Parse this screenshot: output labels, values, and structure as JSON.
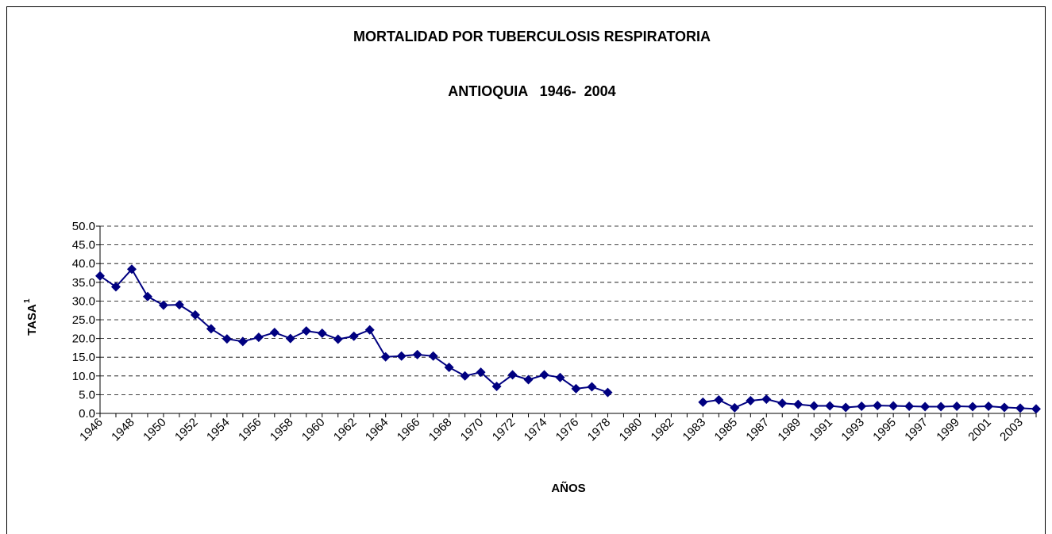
{
  "chart_data": {
    "type": "line",
    "title": "MORTALIDAD POR TUBERCULOSIS RESPIRATORIA",
    "subtitle": "ANTIOQUIA   1946-  2004",
    "y_label": "TASA",
    "y_label_superscript": "1",
    "x_label": "AÑOS",
    "categories": [
      "1946",
      null,
      "1948",
      null,
      "1950",
      null,
      "1952",
      null,
      "1954",
      null,
      "1956",
      null,
      "1958",
      null,
      "1960",
      null,
      "1962",
      null,
      "1964",
      null,
      "1966",
      null,
      "1968",
      null,
      "1970",
      null,
      "1972",
      null,
      "1974",
      null,
      "1976",
      null,
      "1978",
      null,
      "1980",
      null,
      "1982",
      null,
      "1983",
      null,
      "1985",
      null,
      "1987",
      null,
      "1989",
      null,
      "1991",
      null,
      "1993",
      null,
      "1995",
      null,
      "1997",
      null,
      "1999",
      null,
      "2001",
      null,
      "2003",
      null
    ],
    "series": [
      {
        "color": "#000080",
        "values": [
          36.7,
          33.8,
          38.5,
          31.2,
          28.9,
          29.0,
          26.3,
          22.6,
          19.9,
          19.2,
          20.3,
          21.6,
          20.0,
          22.0,
          21.4,
          19.8,
          20.6,
          22.3,
          15.1,
          15.3,
          15.7,
          15.3,
          12.3,
          10.0,
          11.0,
          7.2,
          10.3,
          9.0,
          10.3,
          9.6,
          6.6,
          7.1,
          5.6,
          null,
          null,
          null,
          null,
          null,
          3.0,
          3.6,
          1.5,
          3.4,
          3.8,
          2.7,
          2.4,
          2.0,
          2.0,
          1.6,
          1.9,
          2.1,
          2.0,
          1.9,
          1.8,
          1.8,
          1.9,
          1.8,
          1.9,
          1.6,
          1.4,
          1.2
        ]
      }
    ],
    "ylim": [
      0,
      50
    ],
    "yticks": [
      {
        "value": 0,
        "label": "0.0"
      },
      {
        "value": 5,
        "label": "5.0"
      },
      {
        "value": 10,
        "label": "10.0"
      },
      {
        "value": 15,
        "label": "15.0"
      },
      {
        "value": 20,
        "label": "20.0"
      },
      {
        "value": 25,
        "label": "25.0"
      },
      {
        "value": 30,
        "label": "30.0"
      },
      {
        "value": 35,
        "label": "35.0"
      },
      {
        "value": 40,
        "label": "40.0"
      },
      {
        "value": 45,
        "label": "45.0"
      },
      {
        "value": 50,
        "label": "50.0"
      }
    ],
    "grid": true
  }
}
